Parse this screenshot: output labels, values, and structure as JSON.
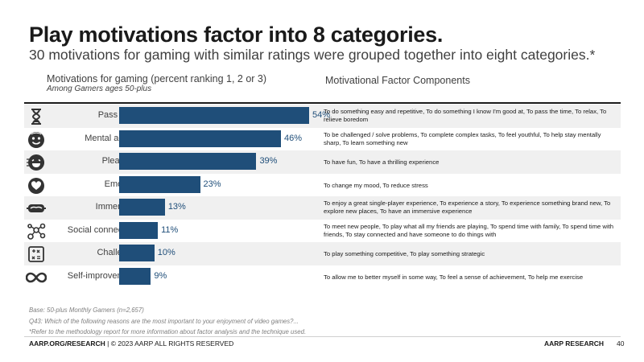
{
  "title": "Play motivations factor into 8 categories.",
  "subtitle": "30 motivations for gaming with similar ratings were grouped together into eight categories.*",
  "chart_data": {
    "type": "bar",
    "orientation": "horizontal",
    "title": "Motivations for gaming (percent ranking 1, 2 or 3)",
    "subtitle": "Among Gamers ages 50-plus",
    "categories": [
      "Pass time",
      "Mental acuity",
      "Pleasure",
      "Emotion",
      "Immersion",
      "Social connection",
      "Challenge",
      "Self-improvement"
    ],
    "values": [
      54,
      46,
      39,
      23,
      13,
      11,
      10,
      9
    ],
    "value_labels": [
      "54%",
      "46%",
      "39%",
      "23%",
      "13%",
      "11%",
      "10%",
      "9%"
    ],
    "unit": "%",
    "xlim": [
      0,
      100
    ],
    "bar_color": "#1f4e79"
  },
  "components_title": "Motivational Factor Components",
  "components": [
    "To do something easy and repetitive, To do something I know I'm good at, To pass the time, To relax, To relieve boredom",
    "To be challenged / solve problems, To complete complex tasks, To feel youthful, To help stay mentally sharp, To learn something new",
    "To have fun, To have a thrilling experience",
    "To change my mood, To reduce stress",
    "To enjoy a great single-player experience, To experience a story, To experience something brand new, To explore new places, To have an immersive experience",
    "To meet new people, To play what all my friends are playing, To spend time with family, To spend time with friends, To stay connected and have someone to do things with",
    "To play something competitive, To play something strategic",
    "To allow me to better myself in some way, To feel a sense of achievement, To help me exercise"
  ],
  "icons": [
    "hourglass-icon",
    "brain-face-icon",
    "laughing-face-icon",
    "heart-icon",
    "vr-headset-icon",
    "network-icon",
    "puzzle-icon",
    "infinity-icon"
  ],
  "notes": {
    "base": "Base: 50-plus Monthly Gamers (n=2,657)",
    "question": "Q43: Which of the following reasons are the most important to your enjoyment of video games?...",
    "refer": "*Refer to the methodology report for more information about factor analysis and the technique used."
  },
  "footer": {
    "site": "AARP.ORG/RESEARCH",
    "rights": " | © 2023 AARP ALL RIGHTS RESERVED",
    "brand": "AARP RESEARCH",
    "page": "40"
  }
}
